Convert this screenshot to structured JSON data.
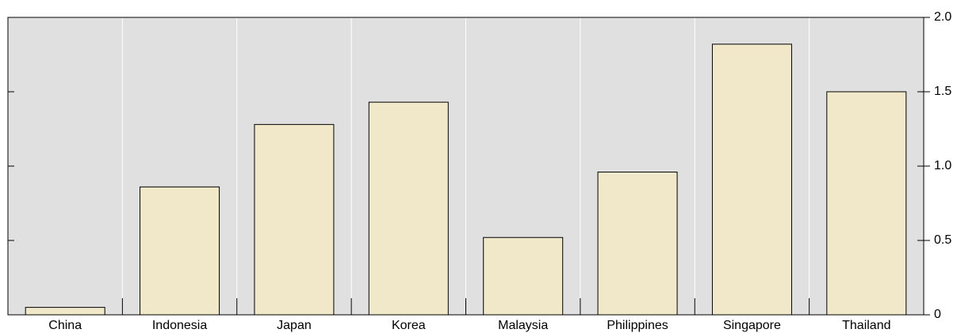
{
  "chart_data": {
    "type": "bar",
    "categories": [
      "China",
      "Indonesia",
      "Japan",
      "Korea",
      "Malaysia",
      "Philippines",
      "Singapore",
      "Thailand"
    ],
    "values": [
      0.05,
      0.86,
      1.28,
      1.43,
      0.52,
      0.96,
      1.82,
      1.5
    ],
    "color": "#f0e8c8",
    "ylim": [
      0,
      2.0
    ],
    "yticks": [
      0,
      0.5,
      {
        "value": 1.0,
        "label": "1.0"
      },
      1.5,
      {
        "value": 2.0,
        "label": "2.0"
      }
    ],
    "grid": true
  }
}
